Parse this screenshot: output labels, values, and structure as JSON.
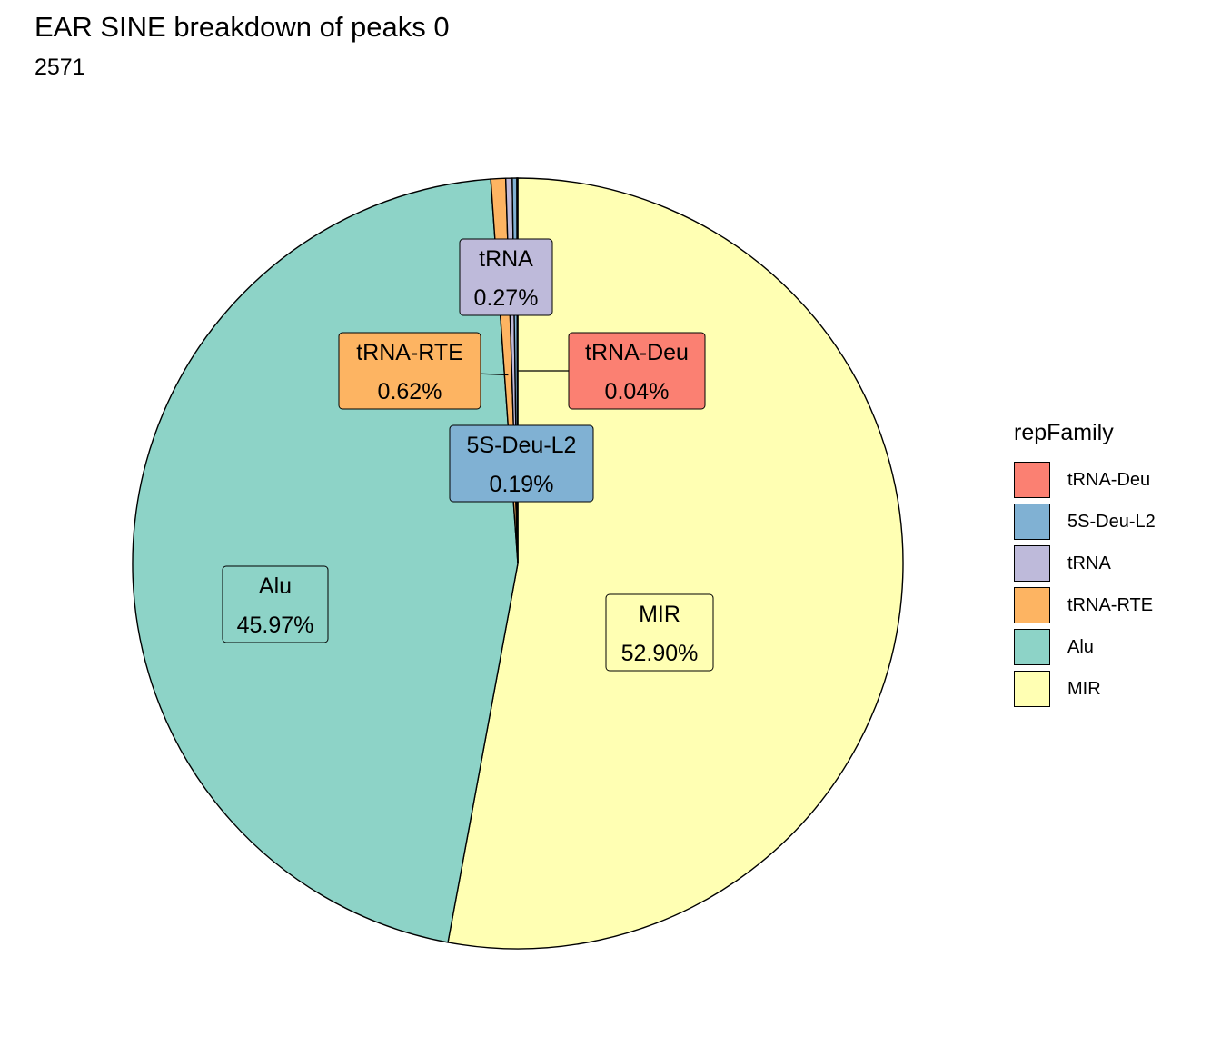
{
  "title": "EAR SINE breakdown of peaks 0",
  "subtitle": "2571",
  "chart_data": {
    "type": "pie",
    "title": "EAR SINE breakdown of peaks 0",
    "subtitle": "2571",
    "legend_title": "repFamily",
    "legend_position": "right",
    "start_angle": "12 o'clock, clockwise",
    "slices": [
      {
        "label": "MIR",
        "value": 52.9,
        "value_label": "52.90%",
        "color": "#FFFFB3"
      },
      {
        "label": "Alu",
        "value": 45.97,
        "value_label": "45.97%",
        "color": "#8DD3C7"
      },
      {
        "label": "tRNA-RTE",
        "value": 0.62,
        "value_label": "0.62%",
        "color": "#FDB462"
      },
      {
        "label": "tRNA",
        "value": 0.27,
        "value_label": "0.27%",
        "color": "#BEBADA"
      },
      {
        "label": "5S-Deu-L2",
        "value": 0.19,
        "value_label": "0.19%",
        "color": "#80B1D3"
      },
      {
        "label": "tRNA-Deu",
        "value": 0.04,
        "value_label": "0.04%",
        "color": "#FB8072"
      }
    ],
    "legend_order": [
      "tRNA-Deu",
      "5S-Deu-L2",
      "tRNA",
      "tRNA-RTE",
      "Alu",
      "MIR"
    ]
  }
}
